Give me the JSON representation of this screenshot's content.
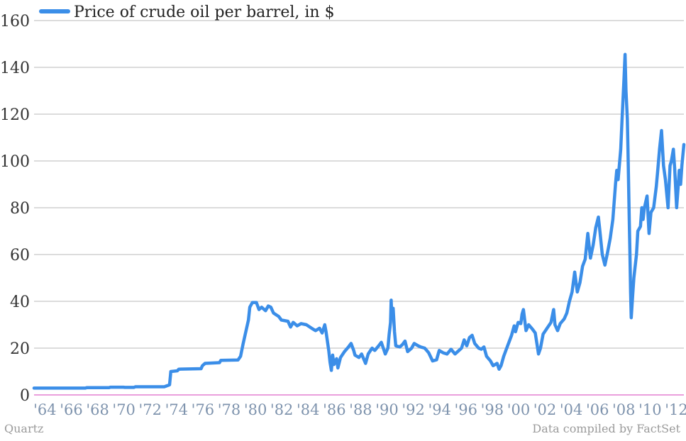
{
  "chart_data": {
    "type": "line",
    "title": "",
    "xlabel": "",
    "ylabel": "",
    "ylim": [
      0,
      160
    ],
    "yticks": [
      0,
      20,
      40,
      60,
      80,
      100,
      120,
      140,
      160
    ],
    "xlim": [
      1963.6,
      2013.0
    ],
    "xticks": [
      {
        "x": 1964,
        "label": "'64"
      },
      {
        "x": 1966,
        "label": "'66"
      },
      {
        "x": 1968,
        "label": "'68"
      },
      {
        "x": 1970,
        "label": "'70"
      },
      {
        "x": 1972,
        "label": "'72"
      },
      {
        "x": 1974,
        "label": "'74"
      },
      {
        "x": 1976,
        "label": "'76"
      },
      {
        "x": 1978,
        "label": "'78"
      },
      {
        "x": 1980,
        "label": "'80"
      },
      {
        "x": 1982,
        "label": "'82"
      },
      {
        "x": 1984,
        "label": "'84"
      },
      {
        "x": 1986,
        "label": "'86"
      },
      {
        "x": 1988,
        "label": "'88"
      },
      {
        "x": 1990,
        "label": "'90"
      },
      {
        "x": 1992,
        "label": "'92"
      },
      {
        "x": 1994,
        "label": "'94"
      },
      {
        "x": 1996,
        "label": "'96"
      },
      {
        "x": 1998,
        "label": "'98"
      },
      {
        "x": 2000,
        "label": "'00"
      },
      {
        "x": 2002,
        "label": "'02"
      },
      {
        "x": 2004,
        "label": "'04"
      },
      {
        "x": 2006,
        "label": "'06"
      },
      {
        "x": 2008,
        "label": "'08"
      },
      {
        "x": 2010,
        "label": "'10"
      },
      {
        "x": 2012,
        "label": "'12"
      }
    ],
    "grid": true,
    "legend_position": "top-left",
    "series": [
      {
        "name": "Price of crude oil per barrel, in $",
        "color": "#3b8ee8",
        "points": [
          [
            1963.6,
            2.9
          ],
          [
            1966.0,
            2.9
          ],
          [
            1967.5,
            2.9
          ],
          [
            1967.6,
            3.1
          ],
          [
            1969.3,
            3.1
          ],
          [
            1969.4,
            3.3
          ],
          [
            1970.4,
            3.3
          ],
          [
            1970.5,
            3.2
          ],
          [
            1971.2,
            3.2
          ],
          [
            1971.3,
            3.5
          ],
          [
            1973.5,
            3.5
          ],
          [
            1973.9,
            4.3
          ],
          [
            1974.0,
            10.0
          ],
          [
            1974.5,
            10.3
          ],
          [
            1974.6,
            11.0
          ],
          [
            1976.3,
            11.2
          ],
          [
            1976.4,
            12.5
          ],
          [
            1976.6,
            13.5
          ],
          [
            1977.7,
            13.8
          ],
          [
            1977.8,
            14.8
          ],
          [
            1979.1,
            14.9
          ],
          [
            1979.3,
            16.5
          ],
          [
            1979.5,
            22.0
          ],
          [
            1979.7,
            27.0
          ],
          [
            1979.9,
            32.0
          ],
          [
            1980.0,
            37.5
          ],
          [
            1980.2,
            39.5
          ],
          [
            1980.5,
            39.5
          ],
          [
            1980.7,
            36.5
          ],
          [
            1980.9,
            37.5
          ],
          [
            1981.2,
            36.0
          ],
          [
            1981.4,
            38.0
          ],
          [
            1981.6,
            37.5
          ],
          [
            1981.8,
            35.0
          ],
          [
            1982.2,
            33.5
          ],
          [
            1982.4,
            32.0
          ],
          [
            1982.9,
            31.5
          ],
          [
            1983.1,
            29.0
          ],
          [
            1983.3,
            31.0
          ],
          [
            1983.6,
            29.5
          ],
          [
            1983.9,
            30.5
          ],
          [
            1984.3,
            30.0
          ],
          [
            1984.7,
            28.5
          ],
          [
            1985.0,
            27.5
          ],
          [
            1985.3,
            28.5
          ],
          [
            1985.5,
            26.5
          ],
          [
            1985.7,
            30.0
          ],
          [
            1985.8,
            27.0
          ],
          [
            1986.0,
            19.0
          ],
          [
            1986.1,
            14.0
          ],
          [
            1986.2,
            10.5
          ],
          [
            1986.3,
            17.0
          ],
          [
            1986.4,
            13.0
          ],
          [
            1986.6,
            15.5
          ],
          [
            1986.7,
            11.5
          ],
          [
            1986.9,
            16.0
          ],
          [
            1987.2,
            18.5
          ],
          [
            1987.5,
            20.5
          ],
          [
            1987.7,
            22.0
          ],
          [
            1987.9,
            19.0
          ],
          [
            1988.0,
            17.0
          ],
          [
            1988.3,
            16.0
          ],
          [
            1988.5,
            17.5
          ],
          [
            1988.8,
            13.5
          ],
          [
            1989.0,
            17.5
          ],
          [
            1989.3,
            20.0
          ],
          [
            1989.5,
            19.0
          ],
          [
            1989.8,
            21.0
          ],
          [
            1990.0,
            22.5
          ],
          [
            1990.3,
            17.5
          ],
          [
            1990.5,
            20.0
          ],
          [
            1990.6,
            26.0
          ],
          [
            1990.7,
            31.0
          ],
          [
            1990.75,
            40.5
          ],
          [
            1990.8,
            33.0
          ],
          [
            1990.9,
            37.0
          ],
          [
            1991.0,
            27.0
          ],
          [
            1991.1,
            21.0
          ],
          [
            1991.4,
            20.5
          ],
          [
            1991.6,
            21.5
          ],
          [
            1991.8,
            23.0
          ],
          [
            1992.0,
            18.5
          ],
          [
            1992.3,
            20.0
          ],
          [
            1992.5,
            22.0
          ],
          [
            1992.8,
            21.0
          ],
          [
            1993.0,
            20.5
          ],
          [
            1993.3,
            20.0
          ],
          [
            1993.6,
            18.0
          ],
          [
            1993.9,
            14.5
          ],
          [
            1994.2,
            15.0
          ],
          [
            1994.4,
            19.0
          ],
          [
            1994.7,
            18.0
          ],
          [
            1995.0,
            17.5
          ],
          [
            1995.3,
            19.5
          ],
          [
            1995.6,
            17.5
          ],
          [
            1995.9,
            19.0
          ],
          [
            1996.1,
            20.0
          ],
          [
            1996.3,
            23.5
          ],
          [
            1996.5,
            21.0
          ],
          [
            1996.7,
            24.5
          ],
          [
            1996.9,
            25.5
          ],
          [
            1997.1,
            22.0
          ],
          [
            1997.4,
            20.0
          ],
          [
            1997.6,
            19.5
          ],
          [
            1997.8,
            20.5
          ],
          [
            1998.0,
            16.5
          ],
          [
            1998.3,
            14.5
          ],
          [
            1998.5,
            12.5
          ],
          [
            1998.8,
            13.5
          ],
          [
            1998.95,
            11.0
          ],
          [
            1999.1,
            12.5
          ],
          [
            1999.3,
            16.5
          ],
          [
            1999.5,
            19.5
          ],
          [
            1999.7,
            22.5
          ],
          [
            1999.9,
            25.5
          ],
          [
            2000.1,
            29.5
          ],
          [
            2000.2,
            27.0
          ],
          [
            2000.4,
            31.0
          ],
          [
            2000.6,
            30.5
          ],
          [
            2000.7,
            34.5
          ],
          [
            2000.8,
            36.5
          ],
          [
            2001.0,
            27.5
          ],
          [
            2001.2,
            30.0
          ],
          [
            2001.5,
            28.0
          ],
          [
            2001.7,
            26.5
          ],
          [
            2001.85,
            21.0
          ],
          [
            2001.95,
            17.5
          ],
          [
            2002.1,
            20.0
          ],
          [
            2002.3,
            26.0
          ],
          [
            2002.6,
            28.5
          ],
          [
            2002.9,
            31.0
          ],
          [
            2003.1,
            36.5
          ],
          [
            2003.2,
            30.0
          ],
          [
            2003.4,
            27.5
          ],
          [
            2003.6,
            30.5
          ],
          [
            2003.9,
            32.5
          ],
          [
            2004.1,
            35.0
          ],
          [
            2004.3,
            40.0
          ],
          [
            2004.5,
            44.0
          ],
          [
            2004.7,
            52.5
          ],
          [
            2004.9,
            44.0
          ],
          [
            2005.1,
            48.0
          ],
          [
            2005.3,
            55.0
          ],
          [
            2005.5,
            58.0
          ],
          [
            2005.7,
            69.0
          ],
          [
            2005.9,
            58.5
          ],
          [
            2006.1,
            64.0
          ],
          [
            2006.3,
            71.5
          ],
          [
            2006.5,
            76.0
          ],
          [
            2006.6,
            71.0
          ],
          [
            2006.8,
            60.0
          ],
          [
            2007.0,
            55.5
          ],
          [
            2007.2,
            61.0
          ],
          [
            2007.4,
            67.0
          ],
          [
            2007.6,
            75.0
          ],
          [
            2007.8,
            90.0
          ],
          [
            2007.9,
            96.0
          ],
          [
            2008.0,
            92.0
          ],
          [
            2008.2,
            105.0
          ],
          [
            2008.3,
            118.0
          ],
          [
            2008.45,
            135.0
          ],
          [
            2008.53,
            145.5
          ],
          [
            2008.6,
            130.0
          ],
          [
            2008.7,
            118.0
          ],
          [
            2008.75,
            105.0
          ],
          [
            2008.85,
            75.0
          ],
          [
            2008.9,
            60.0
          ],
          [
            2008.95,
            44.0
          ],
          [
            2009.0,
            33.0
          ],
          [
            2009.1,
            42.0
          ],
          [
            2009.2,
            50.0
          ],
          [
            2009.4,
            60.0
          ],
          [
            2009.5,
            70.0
          ],
          [
            2009.7,
            72.0
          ],
          [
            2009.8,
            80.0
          ],
          [
            2009.9,
            75.0
          ],
          [
            2010.0,
            80.0
          ],
          [
            2010.2,
            85.0
          ],
          [
            2010.35,
            69.0
          ],
          [
            2010.5,
            78.0
          ],
          [
            2010.7,
            80.0
          ],
          [
            2010.9,
            89.0
          ],
          [
            2011.0,
            95.0
          ],
          [
            2011.15,
            105.0
          ],
          [
            2011.3,
            113.0
          ],
          [
            2011.45,
            98.0
          ],
          [
            2011.6,
            92.0
          ],
          [
            2011.8,
            80.0
          ],
          [
            2011.95,
            98.0
          ],
          [
            2012.05,
            100.0
          ],
          [
            2012.2,
            105.0
          ],
          [
            2012.3,
            97.0
          ],
          [
            2012.45,
            80.0
          ],
          [
            2012.55,
            88.0
          ],
          [
            2012.65,
            96.0
          ],
          [
            2012.75,
            90.0
          ],
          [
            2012.85,
            98.0
          ],
          [
            2013.0,
            107.0
          ]
        ]
      }
    ]
  },
  "footer": {
    "source_left": "Quartz",
    "source_right": "Data compiled by FactSet"
  }
}
